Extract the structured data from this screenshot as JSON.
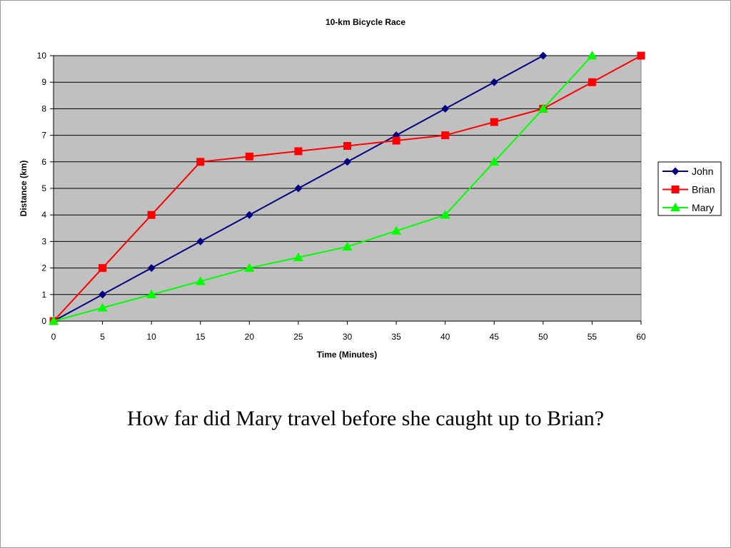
{
  "slide": {
    "question": "How far did Mary travel before she caught up to Brian?"
  },
  "chart_data": {
    "type": "line",
    "title": "10-km Bicycle Race",
    "xlabel": "Time (Minutes)",
    "ylabel": "Distance (km)",
    "xlim": [
      0,
      60
    ],
    "ylim": [
      0,
      10
    ],
    "xticks": [
      0,
      5,
      10,
      15,
      20,
      25,
      30,
      35,
      40,
      45,
      50,
      55,
      60
    ],
    "yticks": [
      0,
      1,
      2,
      3,
      4,
      5,
      6,
      7,
      8,
      9,
      10
    ],
    "grid": "horizontal",
    "plot_background": "#c0c0c0",
    "legend_position": "right",
    "series": [
      {
        "name": "John",
        "color": "#000080",
        "marker": "diamond",
        "x": [
          0,
          5,
          10,
          15,
          20,
          25,
          30,
          35,
          40,
          45,
          50
        ],
        "y": [
          0,
          1,
          2,
          3,
          4,
          5,
          6,
          7,
          8,
          9,
          10
        ]
      },
      {
        "name": "Brian",
        "color": "#ff0000",
        "marker": "square",
        "x": [
          0,
          5,
          10,
          15,
          20,
          25,
          30,
          35,
          40,
          45,
          50,
          55,
          60
        ],
        "y": [
          0,
          2,
          4,
          6,
          6.2,
          6.4,
          6.6,
          6.8,
          7,
          7.5,
          8,
          9,
          10
        ]
      },
      {
        "name": "Mary",
        "color": "#00ff00",
        "marker": "triangle",
        "x": [
          0,
          5,
          10,
          15,
          20,
          25,
          30,
          35,
          40,
          45,
          50,
          55
        ],
        "y": [
          0,
          0.5,
          1,
          1.5,
          2,
          2.4,
          2.8,
          3.4,
          4,
          6,
          8,
          10
        ]
      }
    ]
  }
}
